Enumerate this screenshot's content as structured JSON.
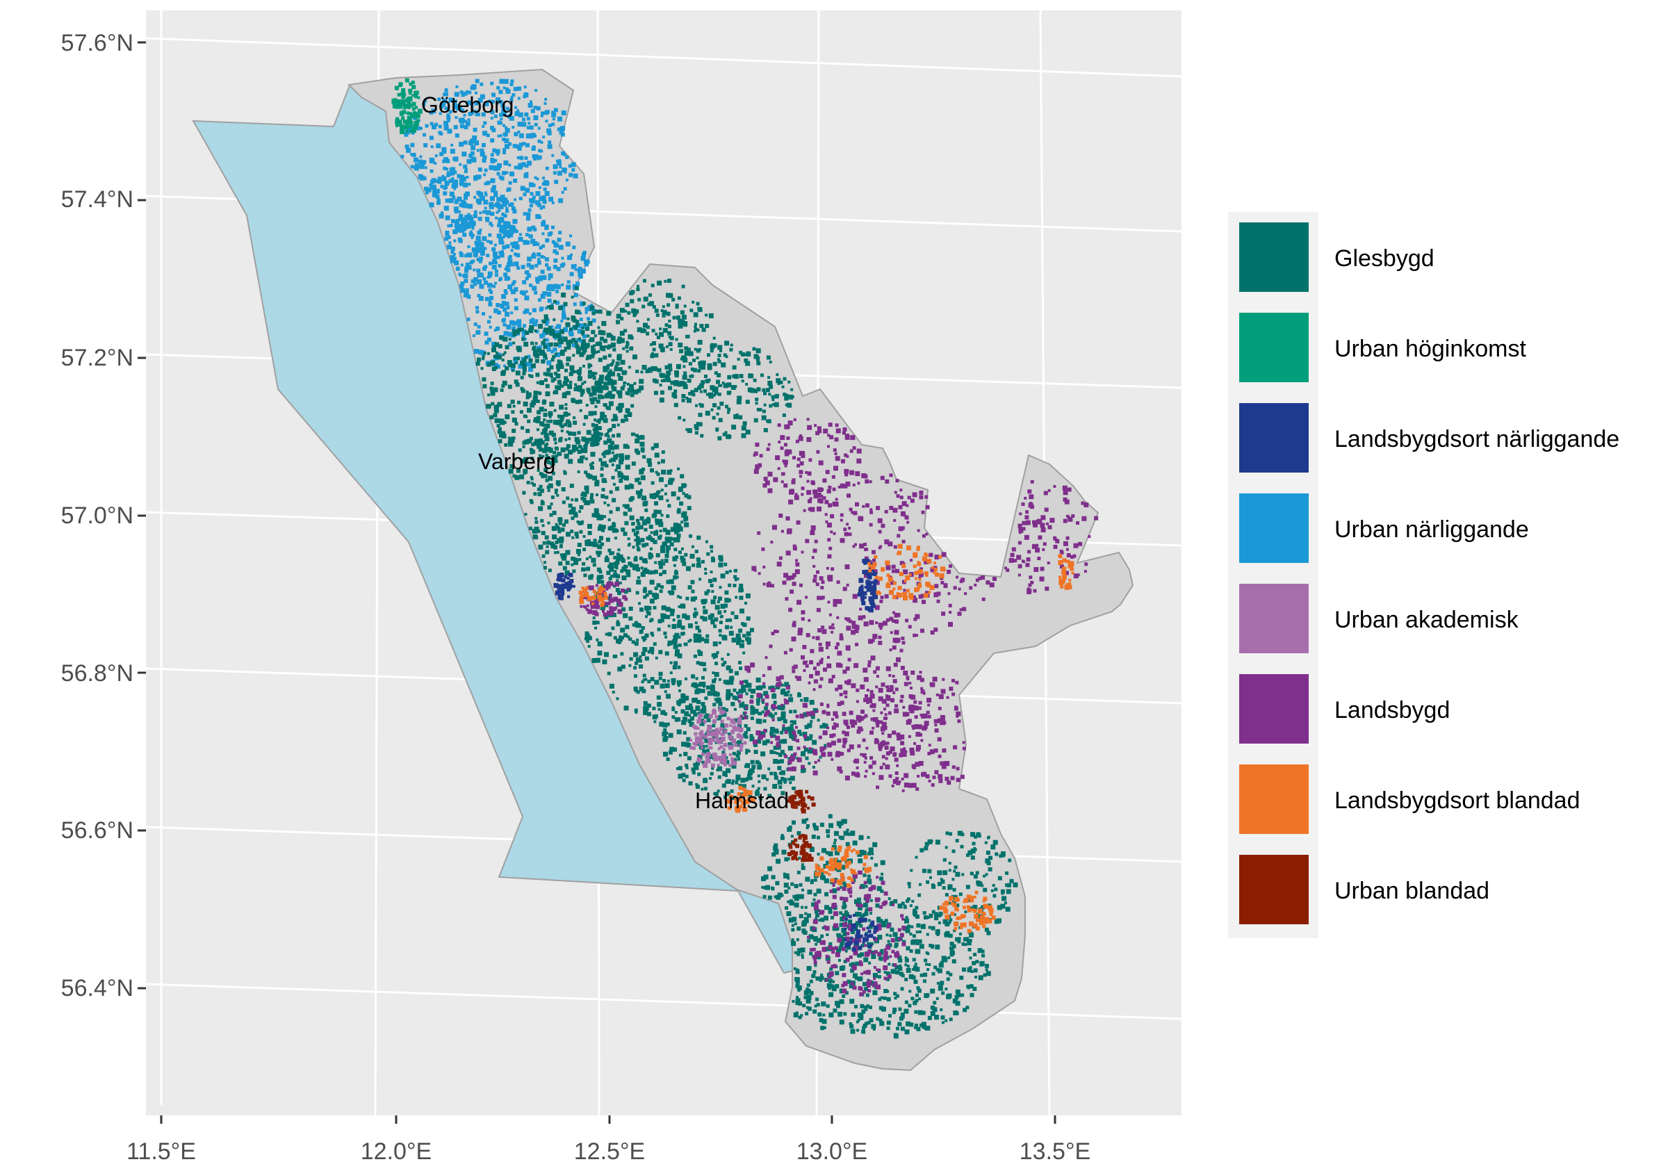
{
  "axes": {
    "x_ticks": [
      "11.5°E",
      "12.0°E",
      "12.5°E",
      "13.0°E",
      "13.5°E"
    ],
    "y_ticks": [
      "57.6°N",
      "57.4°N",
      "57.2°N",
      "57.0°N",
      "56.8°N",
      "56.6°N",
      "56.4°N"
    ]
  },
  "cities": [
    "Göteborg",
    "Varberg",
    "Halmstad"
  ],
  "legend": [
    {
      "label": "Glesbygd",
      "color": "#00726b"
    },
    {
      "label": "Urban höginkomst",
      "color": "#009e7a"
    },
    {
      "label": "Landsbygdsort närliggande",
      "color": "#1e3a8f"
    },
    {
      "label": "Urban närliggande",
      "color": "#1b98d6"
    },
    {
      "label": "Urban akademisk",
      "color": "#a66fac"
    },
    {
      "label": "Landsbygd",
      "color": "#7f2f8c"
    },
    {
      "label": "Landsbygdsort blandad",
      "color": "#ef7426"
    },
    {
      "label": "Urban blandad",
      "color": "#8b1e00"
    }
  ],
  "colors": {
    "panel": "#ebebeb",
    "grid": "#ffffff",
    "sea": "#add8e6",
    "land": "#d3d3d3",
    "border": "#a0a0a0"
  }
}
